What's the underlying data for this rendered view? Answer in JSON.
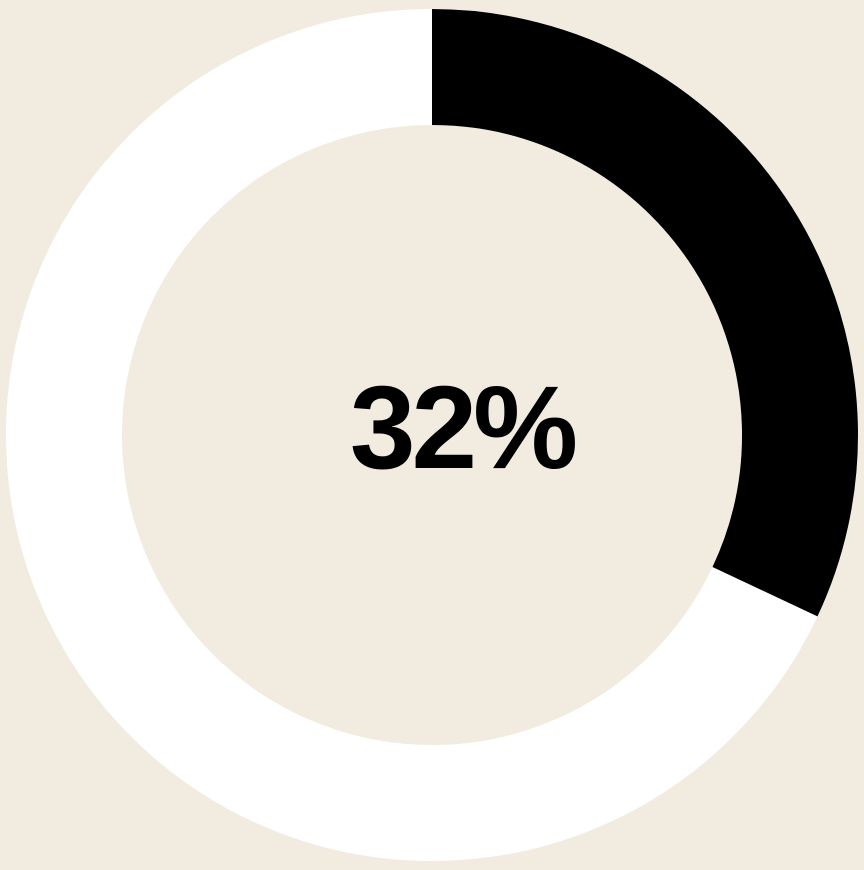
{
  "chart_data": {
    "type": "pie",
    "variant": "donut",
    "values": [
      32,
      68
    ],
    "center_label": "32%",
    "colors": {
      "filled": "#000000",
      "remaining": "#ffffff",
      "background": "#f2ece0"
    }
  }
}
